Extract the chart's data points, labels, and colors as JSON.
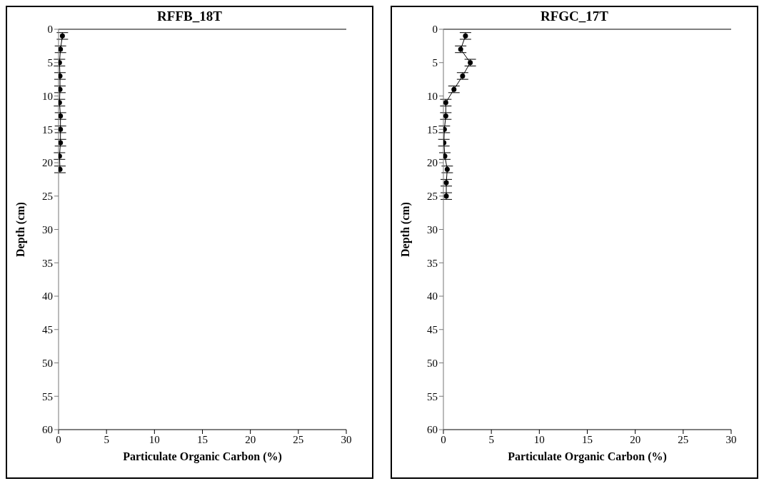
{
  "chart_data": [
    {
      "type": "line",
      "title": "RFFB_18T",
      "xlabel": "Particulate Organic Carbon (%)",
      "ylabel": "Depth (cm)",
      "xlim": [
        0,
        30
      ],
      "xticks": [
        0,
        5,
        10,
        15,
        20,
        25,
        30
      ],
      "ylim": [
        60,
        0
      ],
      "yticks": [
        0,
        5,
        10,
        15,
        20,
        25,
        30,
        35,
        40,
        45,
        50,
        55,
        60
      ],
      "marker": "circle",
      "line_style": "solid",
      "grid": false,
      "series": [
        {
          "color": "#000000",
          "x": [
            0.4,
            0.2,
            0.1,
            0.15,
            0.15,
            0.1,
            0.2,
            0.2,
            0.2,
            0.1,
            0.15
          ],
          "values": [
            1,
            3,
            5,
            7,
            9,
            11,
            13,
            15,
            17,
            19,
            21
          ],
          "errors": [
            0.5,
            0.5,
            0.5,
            0.5,
            0.5,
            0.5,
            0.5,
            0.5,
            0.5,
            0.5,
            0.5
          ]
        }
      ]
    },
    {
      "type": "line",
      "title": "RFGC_17T",
      "xlabel": "Particulate Organic Carbon (%)",
      "ylabel": "Depth (cm)",
      "xlim": [
        0,
        30
      ],
      "xticks": [
        0,
        5,
        10,
        15,
        20,
        25,
        30
      ],
      "ylim": [
        60,
        0
      ],
      "yticks": [
        0,
        5,
        10,
        15,
        20,
        25,
        30,
        35,
        40,
        45,
        50,
        55,
        60
      ],
      "marker": "circle",
      "line_style": "solid",
      "grid": false,
      "series": [
        {
          "color": "#000000",
          "x": [
            2.3,
            1.8,
            2.8,
            2.0,
            1.1,
            0.25,
            0.25,
            0.1,
            0.05,
            0.15,
            0.4,
            0.3,
            0.3
          ],
          "values": [
            1,
            3,
            5,
            7,
            9,
            11,
            13,
            15,
            17,
            19,
            21,
            23,
            25
          ],
          "errors": [
            0.5,
            0.5,
            0.5,
            0.5,
            0.5,
            0.5,
            0.5,
            0.5,
            0.5,
            0.5,
            0.5,
            0.5,
            0.5
          ]
        }
      ]
    }
  ]
}
